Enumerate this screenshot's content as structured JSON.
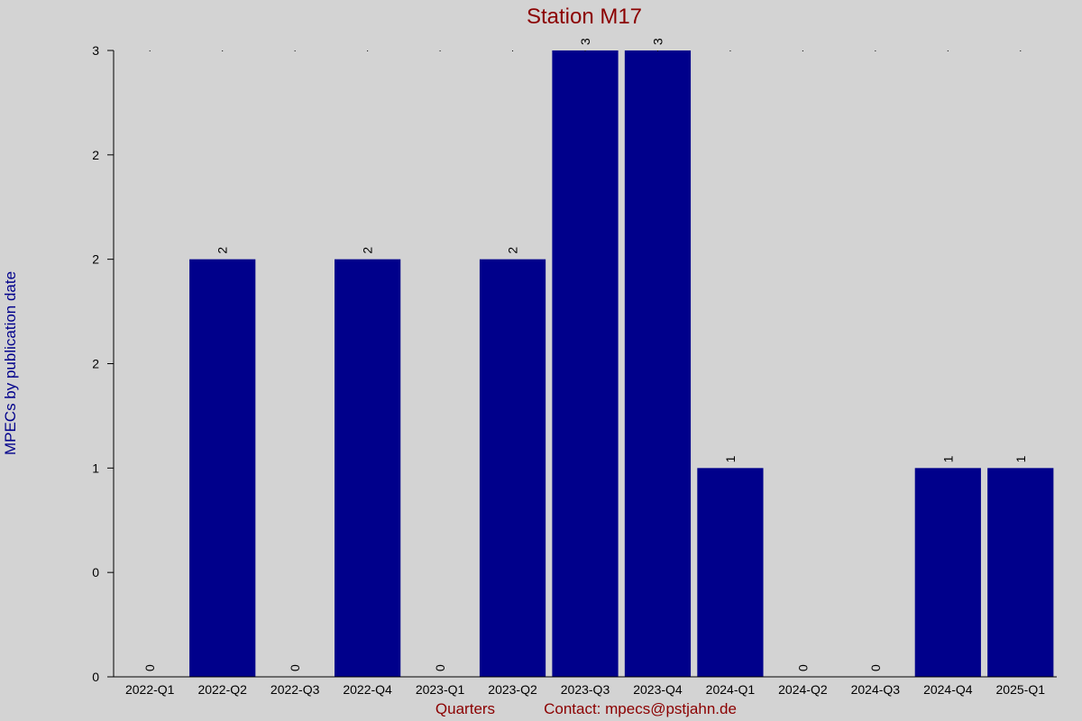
{
  "chart_data": {
    "type": "bar",
    "title": "Station M17",
    "xlabel": "Quarters",
    "ylabel": "MPECs by publication date",
    "footer": "Contact: mpecs@pstjahn.de",
    "categories": [
      "2022-Q1",
      "2022-Q2",
      "2022-Q3",
      "2022-Q4",
      "2023-Q1",
      "2023-Q2",
      "2023-Q3",
      "2023-Q4",
      "2024-Q1",
      "2024-Q2",
      "2024-Q3",
      "2024-Q4",
      "2025-Q1"
    ],
    "values": [
      0,
      2,
      0,
      2,
      0,
      2,
      3,
      3,
      1,
      0,
      0,
      1,
      1
    ],
    "ylim": [
      0,
      3
    ],
    "yticks": [
      0,
      0.5,
      1,
      1.5,
      2,
      2.5,
      3
    ],
    "ytick_labels": [
      "0",
      "0",
      "1",
      "2",
      "2",
      "2",
      "3"
    ],
    "bar_color": "#00008b",
    "background": "#d3d3d3",
    "grid": false,
    "legend": "none"
  }
}
